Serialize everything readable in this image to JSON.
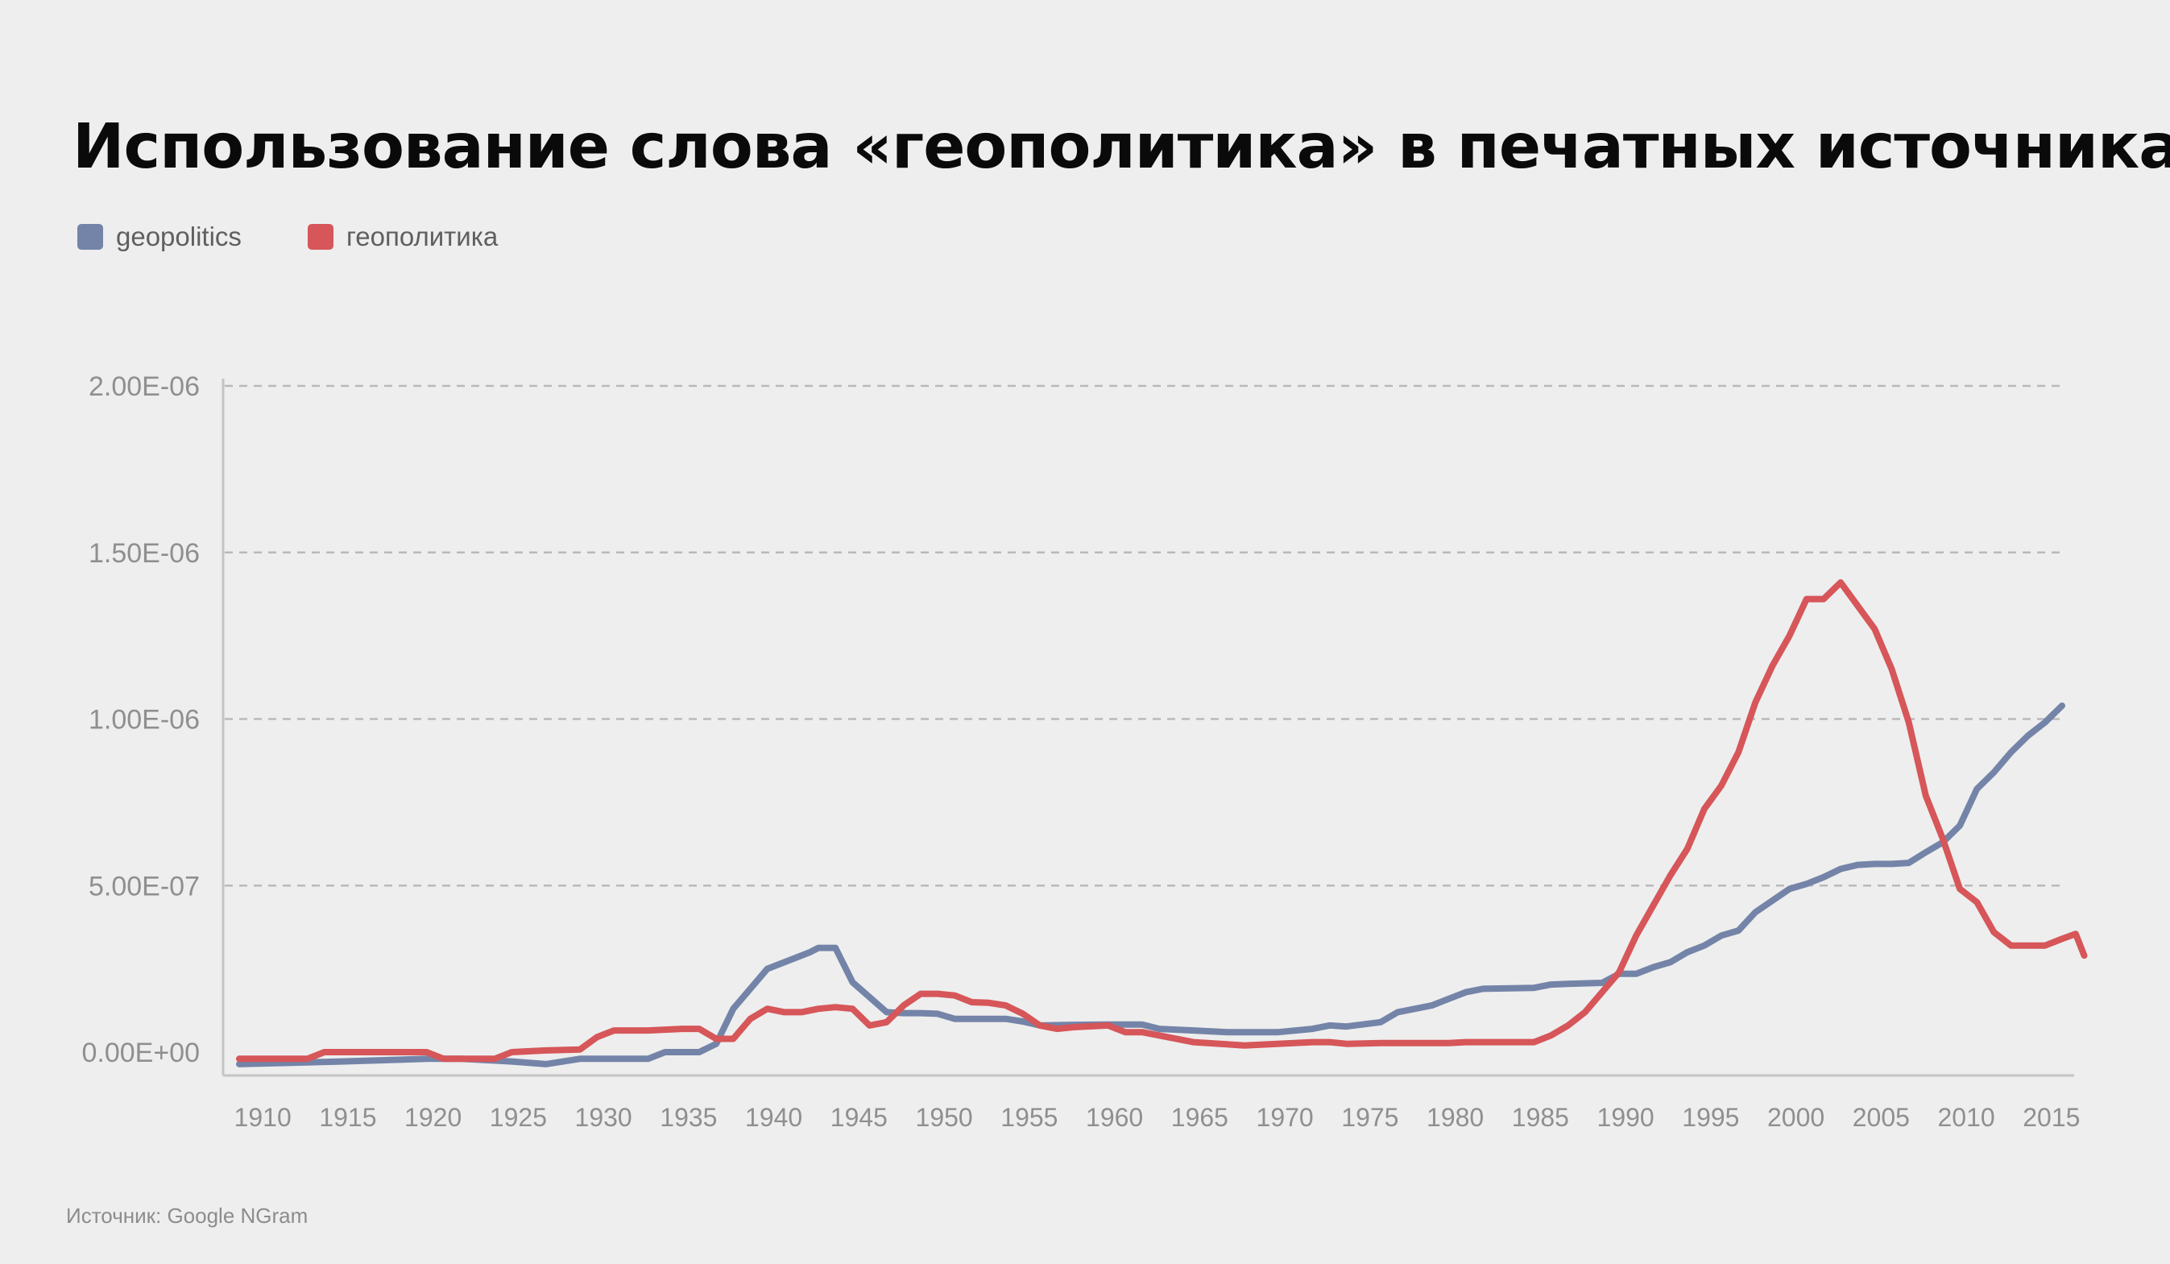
{
  "title": "Использование слова «геополитика» в печатных источниках",
  "legend": [
    {
      "label": "geopolitics",
      "color": "#7484a8"
    },
    {
      "label": "геополитика",
      "color": "#d65659"
    }
  ],
  "source": "Источник: Google NGram",
  "chart_data": {
    "type": "line",
    "title": "Использование слова «геополитика» в печатных источниках",
    "xlabel": "",
    "ylabel": "",
    "xlim": [
      1909,
      2016
    ],
    "ylim": [
      0,
      2e-06
    ],
    "grid": true,
    "legend_position": "top-left",
    "x_ticks": [
      1910,
      1915,
      1920,
      1925,
      1930,
      1935,
      1940,
      1945,
      1950,
      1955,
      1960,
      1965,
      1970,
      1975,
      1980,
      1985,
      1990,
      1995,
      2000,
      2005,
      2010,
      2015
    ],
    "y_ticks": [
      {
        "value": 0,
        "label": "0.00E+00"
      },
      {
        "value": 5e-07,
        "label": "5.00E-07"
      },
      {
        "value": 1e-06,
        "label": "1.00E-06"
      },
      {
        "value": 1.5e-06,
        "label": "1.50E-06"
      },
      {
        "value": 2e-06,
        "label": "2.00E-06"
      }
    ],
    "series": [
      {
        "name": "geopolitics",
        "color": "#7484a8",
        "points": [
          [
            1909,
            -3.6e-08
          ],
          [
            1915,
            -2.8e-08
          ],
          [
            1920,
            -2e-08
          ],
          [
            1922,
            -2e-08
          ],
          [
            1925,
            -2.8e-08
          ],
          [
            1927,
            -3.6e-08
          ],
          [
            1929,
            -2e-08
          ],
          [
            1932,
            -2e-08
          ],
          [
            1933,
            -2e-08
          ],
          [
            1934,
            0
          ],
          [
            1936,
            0
          ],
          [
            1937,
            2.5e-08
          ],
          [
            1938,
            1.3e-07
          ],
          [
            1939,
            1.9e-07
          ],
          [
            1940,
            2.5e-07
          ],
          [
            1941,
            2.7e-07
          ],
          [
            1942,
            2.9e-07
          ],
          [
            1942.5,
            3e-07
          ],
          [
            1943,
            3.13e-07
          ],
          [
            1944,
            3.13e-07
          ],
          [
            1945,
            2.1e-07
          ],
          [
            1946,
            1.65e-07
          ],
          [
            1947,
            1.2e-07
          ],
          [
            1948,
            1.17e-07
          ],
          [
            1949,
            1.17e-07
          ],
          [
            1950,
            1.15e-07
          ],
          [
            1951,
            1e-07
          ],
          [
            1952,
            1e-07
          ],
          [
            1953,
            1e-07
          ],
          [
            1954,
            1e-07
          ],
          [
            1955,
            9.2e-08
          ],
          [
            1956,
            8e-08
          ],
          [
            1958,
            8.2e-08
          ],
          [
            1960,
            8.3e-08
          ],
          [
            1962,
            8.3e-08
          ],
          [
            1963,
            7e-08
          ],
          [
            1965,
            6.5e-08
          ],
          [
            1967,
            6e-08
          ],
          [
            1968,
            6e-08
          ],
          [
            1970,
            6e-08
          ],
          [
            1972,
            7e-08
          ],
          [
            1973,
            8e-08
          ],
          [
            1974,
            7.7e-08
          ],
          [
            1976,
            9e-08
          ],
          [
            1977,
            1.2e-07
          ],
          [
            1979,
            1.4e-07
          ],
          [
            1980,
            1.6e-07
          ],
          [
            1981,
            1.8e-07
          ],
          [
            1982,
            1.9e-07
          ],
          [
            1985,
            1.93e-07
          ],
          [
            1986,
            2.03e-07
          ],
          [
            1987,
            2.05e-07
          ],
          [
            1989,
            2.08e-07
          ],
          [
            1990,
            2.35e-07
          ],
          [
            1991,
            2.35e-07
          ],
          [
            1992,
            2.55e-07
          ],
          [
            1993,
            2.7e-07
          ],
          [
            1994,
            3e-07
          ],
          [
            1995,
            3.2e-07
          ],
          [
            1996,
            3.5e-07
          ],
          [
            1997,
            3.65e-07
          ],
          [
            1998,
            4.2e-07
          ],
          [
            2000,
            4.9e-07
          ],
          [
            2001,
            5.05e-07
          ],
          [
            2002,
            5.25e-07
          ],
          [
            2003,
            5.5e-07
          ],
          [
            2004,
            5.62e-07
          ],
          [
            2005,
            5.65e-07
          ],
          [
            2006,
            5.65e-07
          ],
          [
            2007,
            5.68e-07
          ],
          [
            2008,
            6e-07
          ],
          [
            2009,
            6.3e-07
          ],
          [
            2010,
            6.8e-07
          ],
          [
            2011,
            7.9e-07
          ],
          [
            2012,
            8.4e-07
          ],
          [
            2013,
            9e-07
          ],
          [
            2014,
            9.5e-07
          ],
          [
            2015,
            9.9e-07
          ],
          [
            2016,
            1.04e-06
          ]
        ]
      },
      {
        "name": "геополитика",
        "color": "#d65659",
        "points": [
          [
            1909,
            -2e-08
          ],
          [
            1912,
            -2e-08
          ],
          [
            1913,
            -2e-08
          ],
          [
            1914,
            0
          ],
          [
            1920,
            0
          ],
          [
            1921,
            -2e-08
          ],
          [
            1924,
            -2e-08
          ],
          [
            1925,
            0
          ],
          [
            1927,
            5e-09
          ],
          [
            1929,
            8e-09
          ],
          [
            1930,
            4.5e-08
          ],
          [
            1931,
            6.5e-08
          ],
          [
            1933,
            6.5e-08
          ],
          [
            1935,
            7e-08
          ],
          [
            1936,
            7e-08
          ],
          [
            1937,
            4e-08
          ],
          [
            1938,
            4e-08
          ],
          [
            1939,
            1e-07
          ],
          [
            1940,
            1.3e-07
          ],
          [
            1941,
            1.2e-07
          ],
          [
            1942,
            1.2e-07
          ],
          [
            1943,
            1.3e-07
          ],
          [
            1944,
            1.35e-07
          ],
          [
            1945,
            1.3e-07
          ],
          [
            1946,
            8e-08
          ],
          [
            1947,
            9e-08
          ],
          [
            1948,
            1.4e-07
          ],
          [
            1949,
            1.75e-07
          ],
          [
            1950,
            1.75e-07
          ],
          [
            1951,
            1.7e-07
          ],
          [
            1952,
            1.5e-07
          ],
          [
            1953,
            1.48e-07
          ],
          [
            1954,
            1.4e-07
          ],
          [
            1955,
            1.15e-07
          ],
          [
            1956,
            8e-08
          ],
          [
            1957,
            7e-08
          ],
          [
            1958,
            7.5e-08
          ],
          [
            1960,
            8e-08
          ],
          [
            1961,
            6e-08
          ],
          [
            1962,
            6e-08
          ],
          [
            1965,
            3e-08
          ],
          [
            1968,
            2e-08
          ],
          [
            1972,
            3e-08
          ],
          [
            1973,
            3e-08
          ],
          [
            1974,
            2.5e-08
          ],
          [
            1976,
            2.7e-08
          ],
          [
            1980,
            2.7e-08
          ],
          [
            1981,
            3e-08
          ],
          [
            1985,
            3e-08
          ],
          [
            1986,
            5e-08
          ],
          [
            1987,
            8e-08
          ],
          [
            1988,
            1.2e-07
          ],
          [
            1990,
            2.4e-07
          ],
          [
            1991,
            3.5e-07
          ],
          [
            1992,
            4.4e-07
          ],
          [
            1993,
            5.3e-07
          ],
          [
            1994,
            6.1e-07
          ],
          [
            1995,
            7.3e-07
          ],
          [
            1996,
            8e-07
          ],
          [
            1997,
            9e-07
          ],
          [
            1998,
            1.05e-06
          ],
          [
            1999,
            1.16e-06
          ],
          [
            2000,
            1.25e-06
          ],
          [
            2001,
            1.36e-06
          ],
          [
            2002,
            1.36e-06
          ],
          [
            2003,
            1.41e-06
          ],
          [
            2004,
            1.34e-06
          ],
          [
            2005,
            1.27e-06
          ],
          [
            2006,
            1.15e-06
          ],
          [
            2007,
            9.9e-07
          ],
          [
            2008,
            7.7e-07
          ],
          [
            2009,
            6.4e-07
          ],
          [
            2010,
            4.9e-07
          ],
          [
            2011,
            4.5e-07
          ],
          [
            2012,
            3.6e-07
          ],
          [
            2013,
            3.2e-07
          ],
          [
            2015,
            3.2e-07
          ],
          [
            2016,
            3.4e-07
          ],
          [
            2016.8,
            3.55e-07
          ],
          [
            2017.3,
            2.9e-07
          ]
        ]
      }
    ]
  }
}
